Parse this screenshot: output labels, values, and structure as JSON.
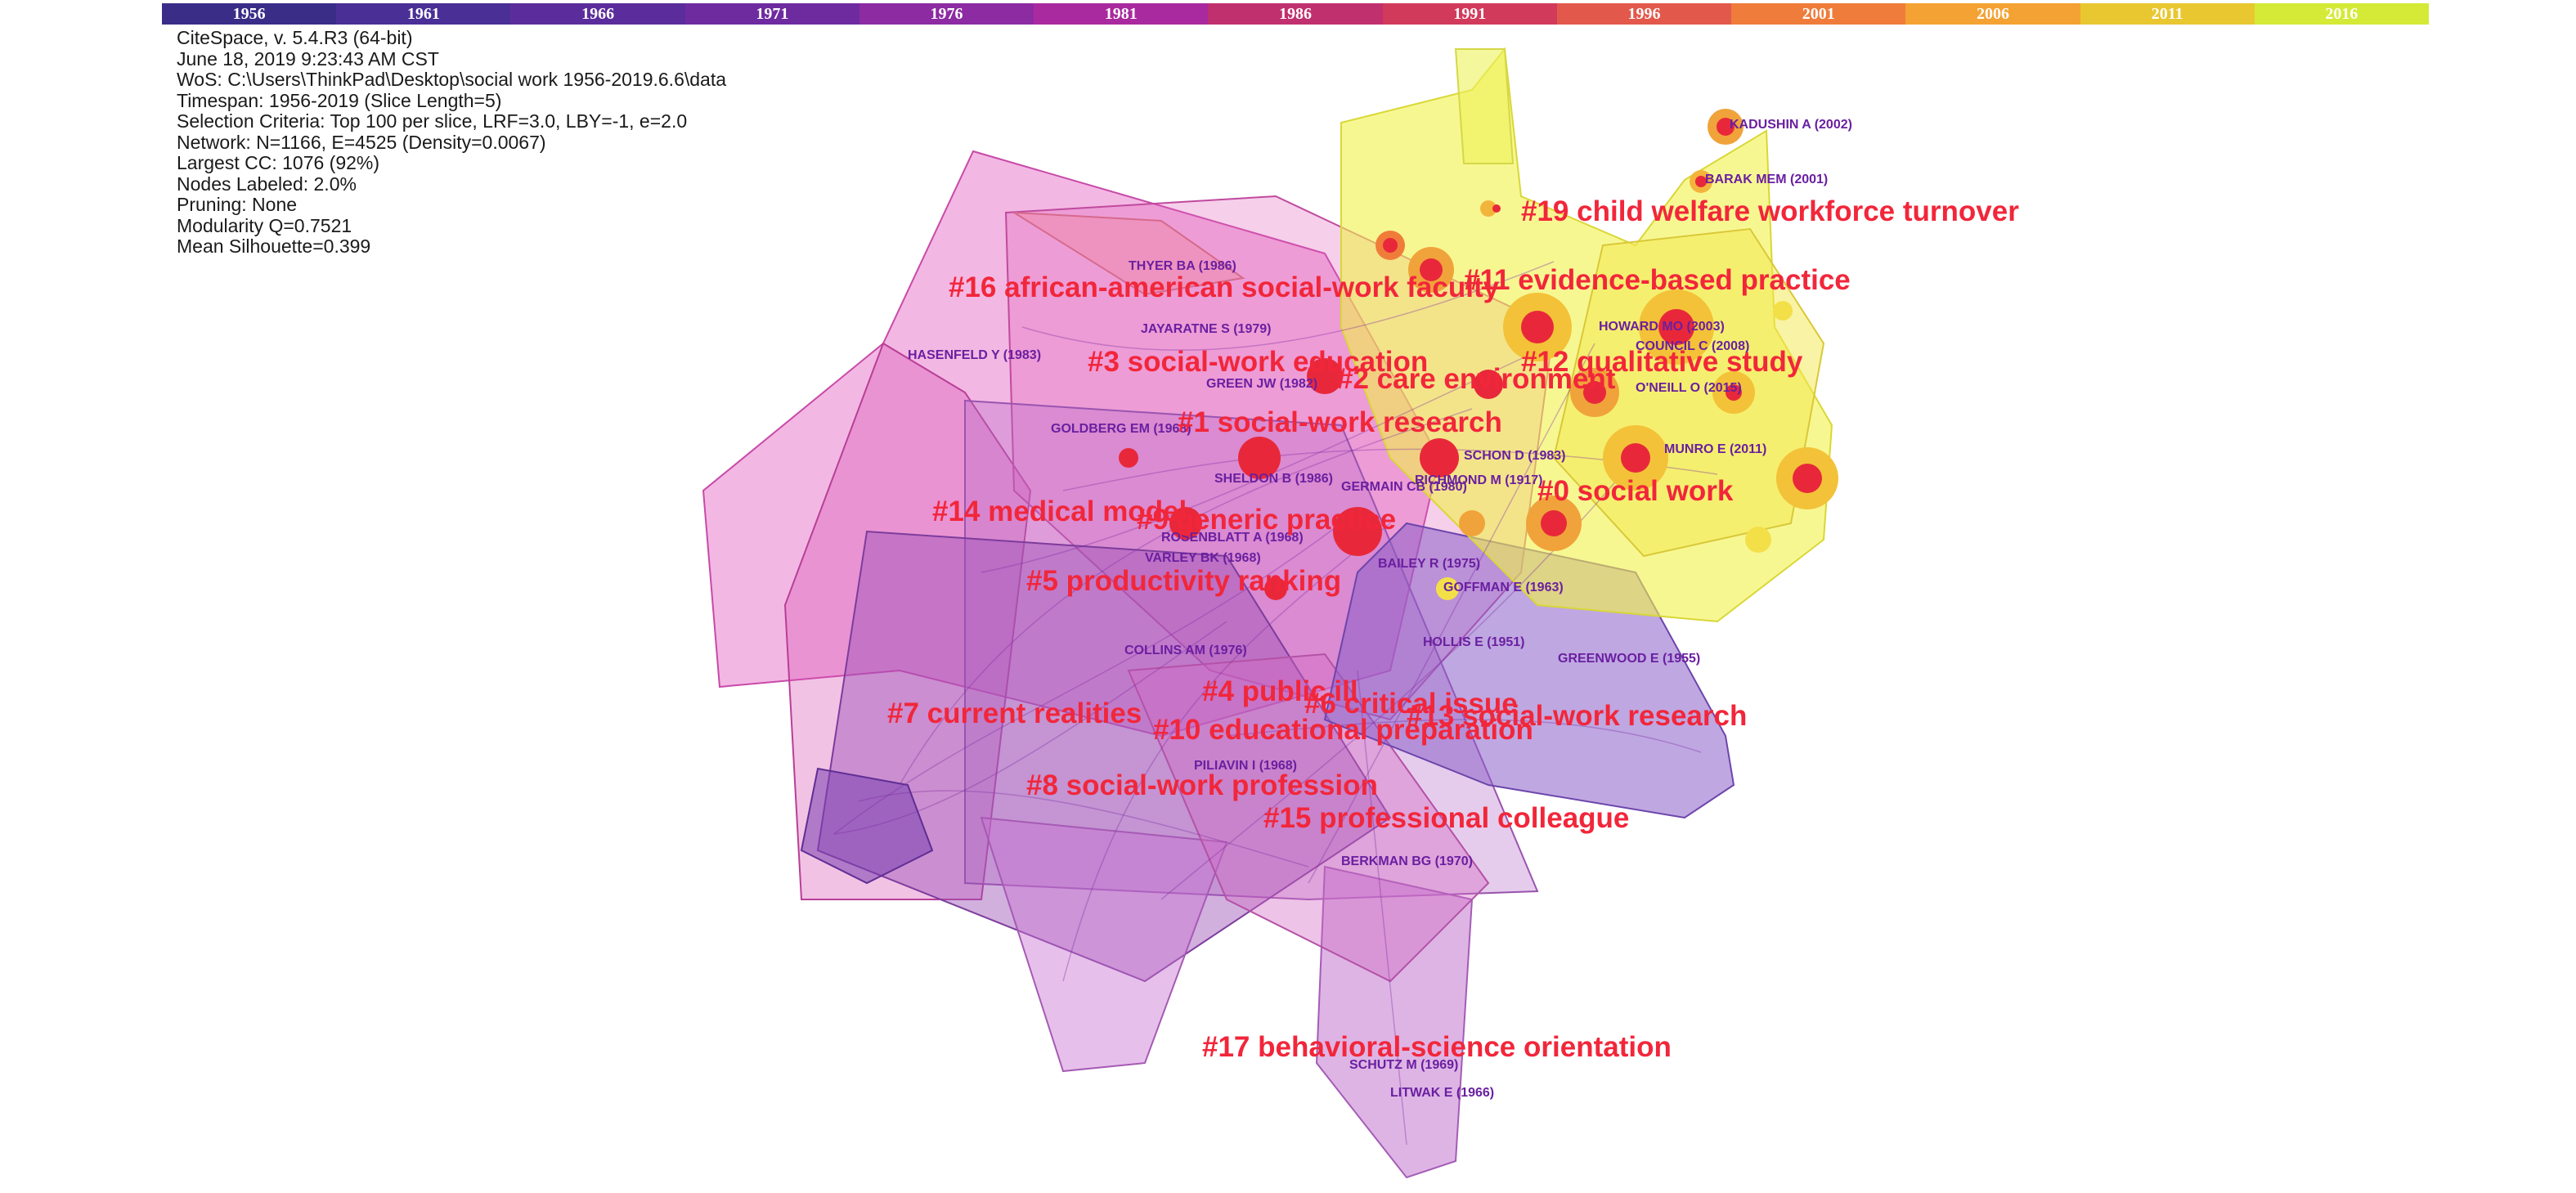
{
  "timeline": {
    "years": [
      "1956",
      "1961",
      "1966",
      "1971",
      "1976",
      "1981",
      "1986",
      "1991",
      "1996",
      "2001",
      "2006",
      "2011",
      "2016"
    ],
    "colors": [
      "#3a2d88",
      "#4a2f96",
      "#5b2d9c",
      "#6e2ba0",
      "#8c2ba2",
      "#a92a9e",
      "#c0306e",
      "#d23a5b",
      "#e2594c",
      "#ef7c3a",
      "#f4a233",
      "#e8c731",
      "#d4ea36"
    ]
  },
  "info_lines": [
    "CiteSpace, v. 5.4.R3 (64-bit)",
    "June 18, 2019 9:23:43 AM CST",
    "WoS: C:\\Users\\ThinkPad\\Desktop\\social work 1956-2019.6.6\\data",
    "Timespan: 1956-2019 (Slice Length=5)",
    "Selection Criteria: Top 100 per slice, LRF=3.0, LBY=-1, e=2.0",
    "Network: N=1166, E=4525 (Density=0.0067)",
    "Largest CC: 1076 (92%)",
    "Nodes Labeled: 2.0%",
    "Pruning: None",
    "Modularity Q=0.7521",
    "Mean Silhouette=0.399"
  ],
  "clusters": [
    {
      "label": "#19 child welfare workforce turnover"
    },
    {
      "label": "#11 evidence-based practice"
    },
    {
      "label": "#16 african-american social-work faculty"
    },
    {
      "label": "#3 social-work education"
    },
    {
      "label": "#12 qualitative study"
    },
    {
      "label": "#2 care environment"
    },
    {
      "label": "#1 social-work research"
    },
    {
      "label": "#0 social work"
    },
    {
      "label": "#14 medical model"
    },
    {
      "label": "#9 generic practice"
    },
    {
      "label": "#5 productivity ranking"
    },
    {
      "label": "#4 public ill"
    },
    {
      "label": "#6 critical issue"
    },
    {
      "label": "#13 social-work research"
    },
    {
      "label": "#7 current realities"
    },
    {
      "label": "#10 educational preparation"
    },
    {
      "label": "#8 social-work profession"
    },
    {
      "label": "#15 professional colleague"
    },
    {
      "label": "#17 behavioral-science orientation"
    }
  ],
  "authors": [
    {
      "label": "KADUSHIN A (2002)"
    },
    {
      "label": "BARAK MEM (2001)"
    },
    {
      "label": "THYER BA (1986)"
    },
    {
      "label": "JAYARATNE S (1979)"
    },
    {
      "label": "HASENFELD Y (1983)"
    },
    {
      "label": "HOWARD MO (2003)"
    },
    {
      "label": "COUNCIL C (2008)"
    },
    {
      "label": "O'NEILL O (2015)"
    },
    {
      "label": "GREEN JW (1982)"
    },
    {
      "label": "GOLDBERG EM (1968)"
    },
    {
      "label": "SCHON D (1983)"
    },
    {
      "label": "MUNRO E (2011)"
    },
    {
      "label": "SHELDON B (1986)"
    },
    {
      "label": "GERMAIN CB (1980)"
    },
    {
      "label": "RICHMOND M (1917)"
    },
    {
      "label": "ROSENBLATT A (1968)"
    },
    {
      "label": "VARLEY BK (1968)"
    },
    {
      "label": "BAILEY R (1975)"
    },
    {
      "label": "GOFFMAN E (1963)"
    },
    {
      "label": "COLLINS AM (1976)"
    },
    {
      "label": "HOLLIS E (1951)"
    },
    {
      "label": "GREENWOOD E (1955)"
    },
    {
      "label": "PILIAVIN I (1968)"
    },
    {
      "label": "BERKMAN BG (1970)"
    },
    {
      "label": "SCHUTZ M (1969)"
    },
    {
      "label": "LITWAK E (1966)"
    }
  ]
}
